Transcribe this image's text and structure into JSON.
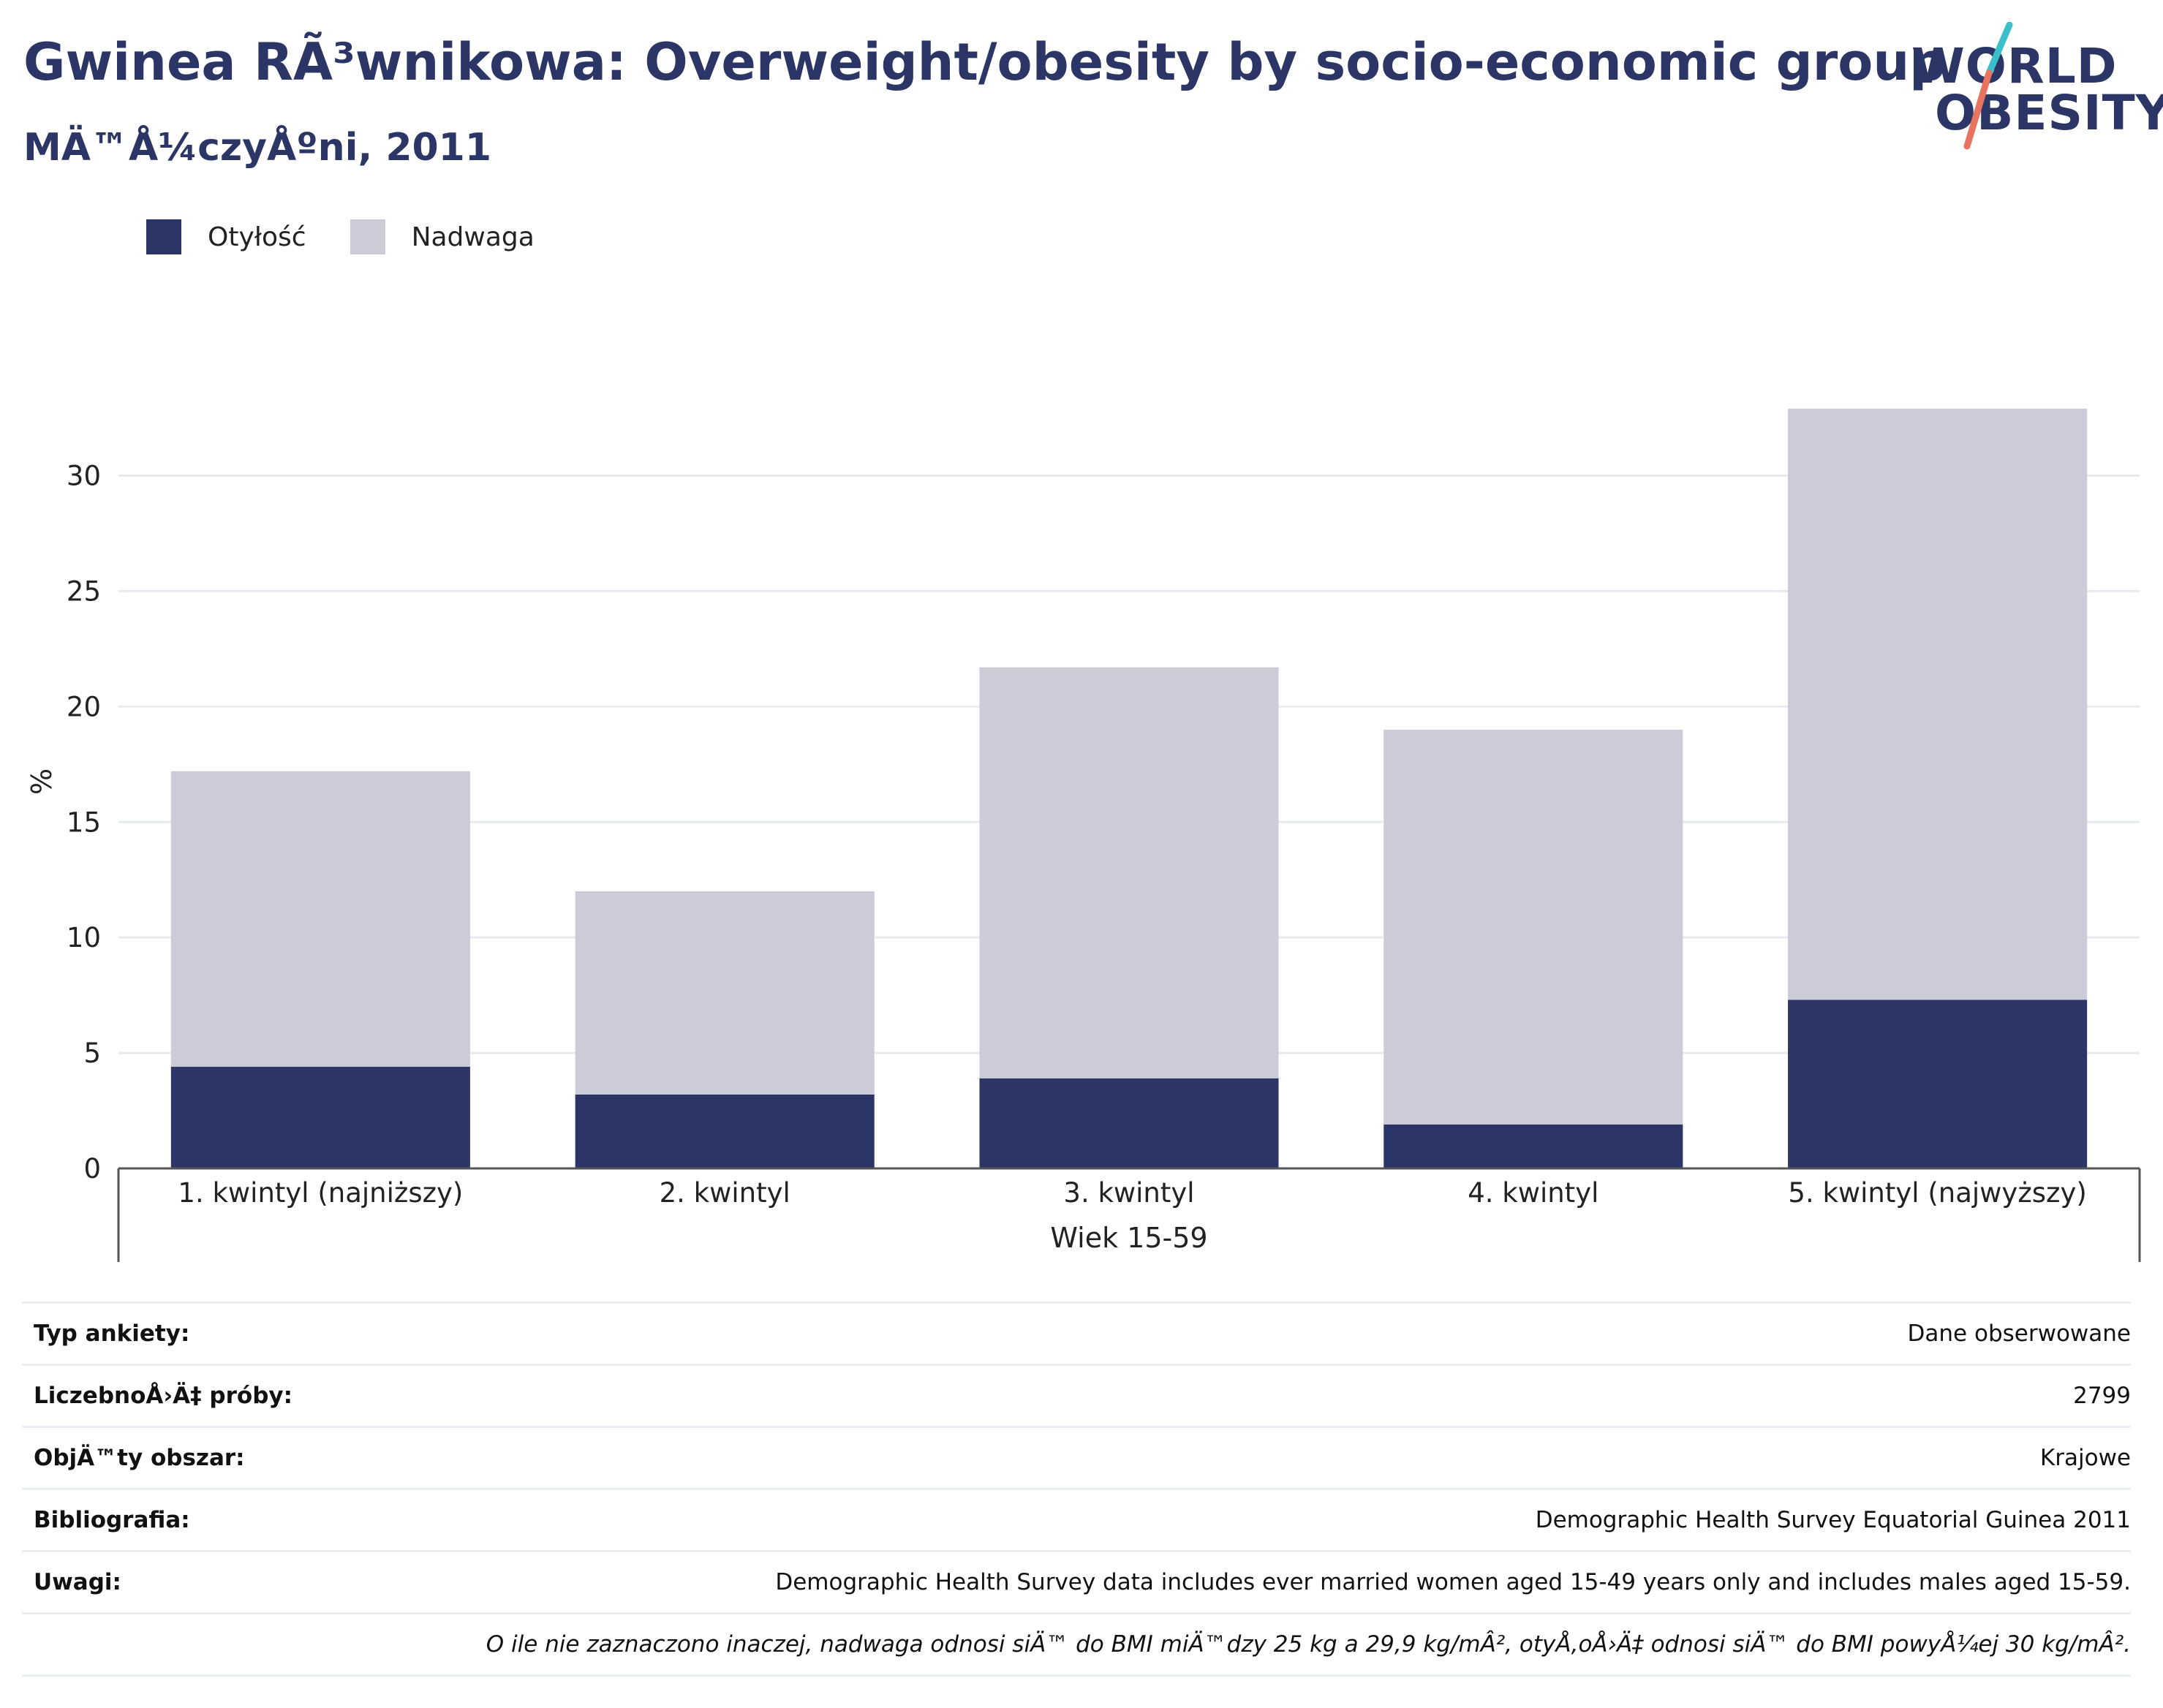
{
  "header": {
    "title": "Gwinea RÃ³wnikowa: Overweight/obesity by socio-economic group",
    "subtitle": "MÄ™Å¼czyÅºni, 2011"
  },
  "logo": {
    "line1": "WORLD",
    "line2": "OBESITY",
    "colors": {
      "text": "#2b3666",
      "slash_top": "#3bbfc9",
      "slash_bottom": "#e8735e"
    }
  },
  "colors": {
    "obesity": "#2b3666",
    "overweight": "#cbccd8",
    "grid": "#e6ebf0",
    "axis": "#555555"
  },
  "chart_data": {
    "type": "bar",
    "stacked": true,
    "categories": [
      "1. kwintyl (najniższy)",
      "2. kwintyl",
      "3. kwintyl",
      "4. kwintyl",
      "5. kwintyl (najwyższy)"
    ],
    "group_label": "Wiek 15-59",
    "series": [
      {
        "name": "Otyłość",
        "values": [
          4.4,
          3.2,
          3.9,
          1.9,
          7.3
        ]
      },
      {
        "name": "Nadwaga",
        "values": [
          12.8,
          8.8,
          17.8,
          17.1,
          25.6
        ]
      }
    ],
    "totals": [
      17.2,
      12.0,
      21.7,
      19.0,
      32.9
    ],
    "ylabel": "%",
    "xlabel": "Wiek 15-59",
    "ylim": [
      0,
      33.5
    ],
    "yticks": [
      0,
      5,
      10,
      15,
      20,
      25,
      30
    ],
    "grid": true,
    "legend_position": "top-left"
  },
  "info": [
    {
      "key": "Typ ankiety:",
      "value": "Dane obserwowane"
    },
    {
      "key": "LiczebnoÅ›Ä‡ próby:",
      "value": "2799"
    },
    {
      "key": "ObjÄ™ty obszar:",
      "value": "Krajowe"
    },
    {
      "key": "Bibliografia:",
      "value": "Demographic Health Survey Equatorial Guinea 2011"
    },
    {
      "key": "Uwagi:",
      "value": "Demographic Health Survey data includes ever married women aged 15-49 years only and includes males aged 15-59."
    }
  ],
  "footnote": "O ile nie zaznaczono inaczej, nadwaga odnosi siÄ™ do BMI miÄ™dzy 25 kg a 29,9 kg/mÂ², otyÅ‚oÅ›Ä‡ odnosi siÄ™ do BMI powyÅ¼ej 30 kg/mÂ²."
}
